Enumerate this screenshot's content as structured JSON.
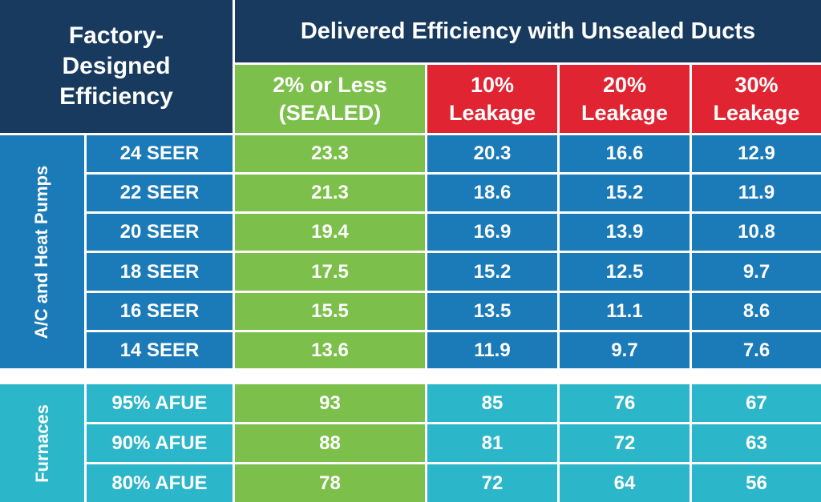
{
  "chart_data": {
    "type": "table",
    "corner_header": "Factory-Designed Efficiency",
    "corner_lines": [
      "Factory-",
      "Designed",
      "Efficiency"
    ],
    "super_header": "Delivered Efficiency with Unsealed Ducts",
    "columns": [
      {
        "lines": [
          "2% or Less",
          "(SEALED)"
        ],
        "color": "#7cc04b"
      },
      {
        "lines": [
          "10%",
          "Leakage"
        ],
        "color": "#e02432"
      },
      {
        "lines": [
          "20%",
          "Leakage"
        ],
        "color": "#e02432"
      },
      {
        "lines": [
          "30%",
          "Leakage"
        ],
        "color": "#e02432"
      }
    ],
    "groups": [
      {
        "name": "A/C and Heat Pumps",
        "color": "#1b7ab8",
        "rows": [
          {
            "label": "24 SEER",
            "values": [
              "23.3",
              "20.3",
              "16.6",
              "12.9"
            ]
          },
          {
            "label": "22 SEER",
            "values": [
              "21.3",
              "18.6",
              "15.2",
              "11.9"
            ]
          },
          {
            "label": "20 SEER",
            "values": [
              "19.4",
              "16.9",
              "13.9",
              "10.8"
            ]
          },
          {
            "label": "18 SEER",
            "values": [
              "17.5",
              "15.2",
              "12.5",
              "9.7"
            ]
          },
          {
            "label": "16 SEER",
            "values": [
              "15.5",
              "13.5",
              "11.1",
              "8.6"
            ]
          },
          {
            "label": "14 SEER",
            "values": [
              "13.6",
              "11.9",
              "9.7",
              "7.6"
            ]
          }
        ]
      },
      {
        "name": "Furnaces",
        "color": "#2cb6c9",
        "rows": [
          {
            "label": "95% AFUE",
            "values": [
              "93",
              "85",
              "76",
              "67"
            ]
          },
          {
            "label": "90% AFUE",
            "values": [
              "88",
              "81",
              "72",
              "63"
            ]
          },
          {
            "label": "80% AFUE",
            "values": [
              "78",
              "72",
              "64",
              "56"
            ]
          }
        ]
      }
    ]
  },
  "colors": {
    "header_dark": "#173a5e",
    "sealed_green": "#7cc04b",
    "leakage_red": "#e02432",
    "ac_blue": "#1b7ab8",
    "furnace_cyan": "#2cb6c9"
  }
}
